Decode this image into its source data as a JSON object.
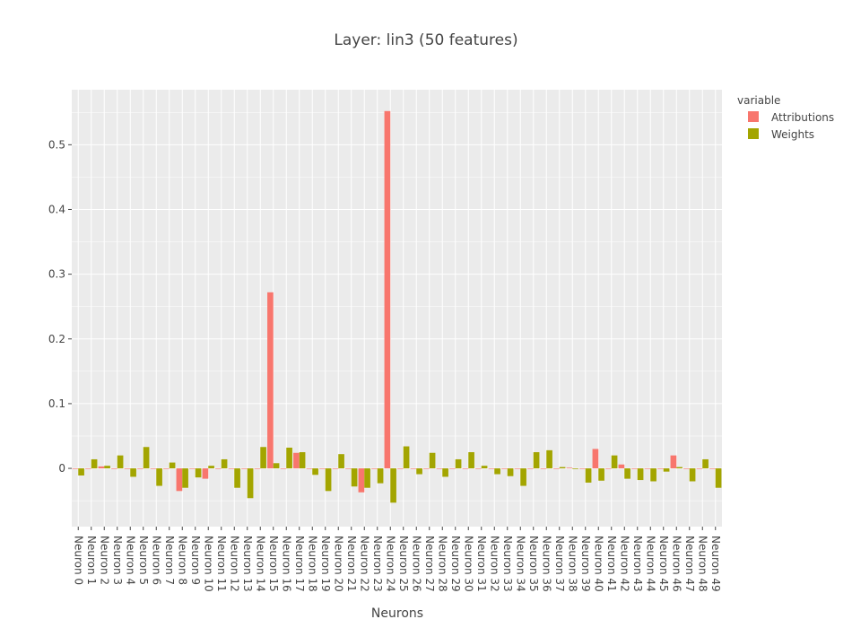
{
  "chart_data": {
    "type": "bar",
    "title": "Layer: lin3 (50 features)",
    "xlabel": "Neurons",
    "ylabel": "",
    "ylim": [
      -0.09,
      0.585
    ],
    "yticks": [
      0,
      0.1,
      0.2,
      0.3,
      0.4,
      0.5
    ],
    "ytick_labels": [
      "0",
      "0.1",
      "0.2",
      "0.3",
      "0.4",
      "0.5"
    ],
    "legend_title": "variable",
    "legend_position": "top-right",
    "grid": true,
    "categories": [
      "Neuron 0",
      "Neuron 1",
      "Neuron 2",
      "Neuron 3",
      "Neuron 4",
      "Neuron 5",
      "Neuron 6",
      "Neuron 7",
      "Neuron 8",
      "Neuron 9",
      "Neuron 10",
      "Neuron 11",
      "Neuron 12",
      "Neuron 13",
      "Neuron 14",
      "Neuron 15",
      "Neuron 16",
      "Neuron 17",
      "Neuron 18",
      "Neuron 19",
      "Neuron 20",
      "Neuron 21",
      "Neuron 22",
      "Neuron 23",
      "Neuron 24",
      "Neuron 25",
      "Neuron 26",
      "Neuron 27",
      "Neuron 28",
      "Neuron 29",
      "Neuron 30",
      "Neuron 31",
      "Neuron 32",
      "Neuron 33",
      "Neuron 34",
      "Neuron 35",
      "Neuron 36",
      "Neuron 37",
      "Neuron 38",
      "Neuron 39",
      "Neuron 40",
      "Neuron 41",
      "Neuron 42",
      "Neuron 43",
      "Neuron 44",
      "Neuron 45",
      "Neuron 46",
      "Neuron 47",
      "Neuron 48",
      "Neuron 49"
    ],
    "series": [
      {
        "name": "Attributions",
        "color": "#F8766D",
        "values": [
          0,
          0,
          0.003,
          0,
          0,
          0,
          0,
          0,
          -0.035,
          0,
          -0.016,
          0,
          0,
          0,
          0,
          0.272,
          0,
          0.024,
          0,
          0,
          0,
          0,
          -0.037,
          0,
          0.552,
          0,
          0,
          0,
          0,
          0,
          0,
          0,
          0,
          0,
          0,
          0,
          0,
          0,
          0.001,
          0,
          0.03,
          0,
          0.006,
          0,
          0,
          0,
          0.02,
          0,
          0,
          0
        ]
      },
      {
        "name": "Weights",
        "color": "#A3A500",
        "values": [
          -0.011,
          0.014,
          0.004,
          0.02,
          -0.013,
          0.033,
          -0.027,
          0.009,
          -0.03,
          -0.014,
          0.004,
          0.014,
          -0.03,
          -0.046,
          0.033,
          0.008,
          0.032,
          0.025,
          -0.01,
          -0.035,
          0.022,
          -0.028,
          -0.03,
          -0.023,
          -0.053,
          0.034,
          -0.009,
          0.024,
          -0.013,
          0.014,
          0.025,
          0.004,
          -0.009,
          -0.012,
          -0.027,
          0.025,
          0.028,
          0.002,
          -0.001,
          -0.022,
          -0.019,
          0.02,
          -0.016,
          -0.018,
          -0.02,
          -0.005,
          0.002,
          -0.02,
          0.014,
          -0.03
        ]
      }
    ]
  }
}
